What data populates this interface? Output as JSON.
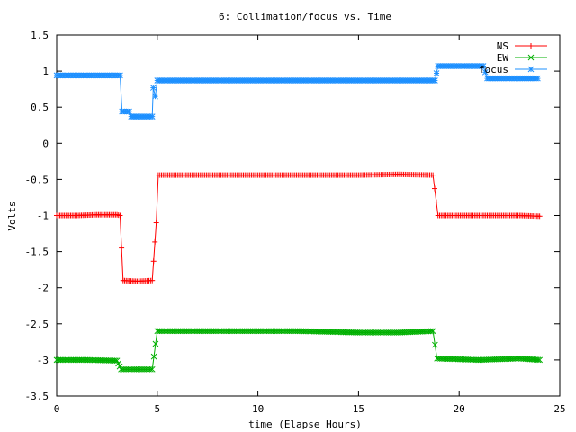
{
  "chart_data": {
    "type": "line",
    "title": "6: Collimation/focus vs. Time",
    "xlabel": "time (Elapse Hours)",
    "ylabel": "Volts",
    "xlim": [
      0,
      25
    ],
    "ylim": [
      -3.5,
      1.5
    ],
    "xticks": [
      "0",
      "5",
      "10",
      "15",
      "20",
      "25"
    ],
    "yticks": [
      "1.5",
      "1",
      "0.5",
      "0",
      "-0.5",
      "-1",
      "-1.5",
      "-2",
      "-2.5",
      "-3",
      "-3.5"
    ],
    "grid": false,
    "legend_position": "top-right",
    "series": [
      {
        "name": "NS",
        "color": "#ff0000",
        "marker": "plus",
        "points": [
          [
            0,
            -1.0
          ],
          [
            1,
            -1.0
          ],
          [
            2,
            -0.99
          ],
          [
            3.0,
            -0.99
          ],
          [
            3.15,
            -1.0
          ],
          [
            3.3,
            -1.9
          ],
          [
            4,
            -1.91
          ],
          [
            4.75,
            -1.9
          ],
          [
            4.95,
            -1.1
          ],
          [
            5.05,
            -0.44
          ],
          [
            8,
            -0.44
          ],
          [
            12,
            -0.44
          ],
          [
            15,
            -0.44
          ],
          [
            17,
            -0.43
          ],
          [
            18.7,
            -0.44
          ],
          [
            18.95,
            -1.0
          ],
          [
            21,
            -1.0
          ],
          [
            23,
            -1.0
          ],
          [
            24,
            -1.01
          ]
        ]
      },
      {
        "name": "EW",
        "color": "#00b000",
        "marker": "cross",
        "points": [
          [
            0,
            -3.0
          ],
          [
            1.5,
            -3.0
          ],
          [
            3.0,
            -3.01
          ],
          [
            3.2,
            -3.13
          ],
          [
            4,
            -3.13
          ],
          [
            4.75,
            -3.13
          ],
          [
            5.0,
            -2.6
          ],
          [
            8,
            -2.6
          ],
          [
            12,
            -2.6
          ],
          [
            15,
            -2.62
          ],
          [
            17,
            -2.62
          ],
          [
            18.7,
            -2.6
          ],
          [
            18.9,
            -2.98
          ],
          [
            21,
            -3.0
          ],
          [
            23,
            -2.98
          ],
          [
            24,
            -3.0
          ]
        ]
      },
      {
        "name": "focus",
        "color": "#1e90ff",
        "marker": "star",
        "points": [
          [
            0,
            0.94
          ],
          [
            2,
            0.94
          ],
          [
            3.15,
            0.94
          ],
          [
            3.25,
            0.44
          ],
          [
            3.6,
            0.44
          ],
          [
            3.7,
            0.37
          ],
          [
            4,
            0.37
          ],
          [
            4.75,
            0.37
          ],
          [
            4.8,
            0.77
          ],
          [
            4.9,
            0.65
          ],
          [
            5.0,
            0.87
          ],
          [
            8,
            0.87
          ],
          [
            12,
            0.87
          ],
          [
            15,
            0.87
          ],
          [
            18.8,
            0.87
          ],
          [
            18.95,
            1.07
          ],
          [
            20,
            1.07
          ],
          [
            21.2,
            1.07
          ],
          [
            21.4,
            0.9
          ],
          [
            22,
            0.9
          ],
          [
            23.9,
            0.9
          ]
        ]
      }
    ]
  }
}
